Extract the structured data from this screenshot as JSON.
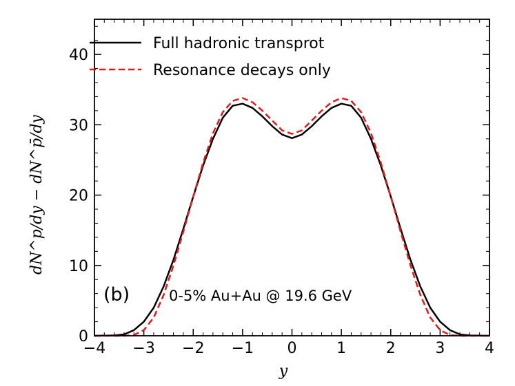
{
  "chart_data": {
    "type": "line",
    "xlabel": "y",
    "ylabel": "dN^p/dy − dN^p̄/dy",
    "xlim": [
      -4,
      4
    ],
    "ylim": [
      0,
      45
    ],
    "xticks": [
      -4,
      -3,
      -2,
      -1,
      0,
      1,
      2,
      3,
      4
    ],
    "yticks": [
      0,
      10,
      20,
      30,
      40
    ],
    "grid": false,
    "legend": "upper-left",
    "annotations": {
      "panel": "(b)",
      "system": "0-5% Au+Au @ 19.6 GeV"
    },
    "series": [
      {
        "name": "Full hadronic transprot",
        "color": "#000000",
        "dash": "solid",
        "x": [
          -4.0,
          -3.6,
          -3.4,
          -3.2,
          -3.0,
          -2.8,
          -2.6,
          -2.4,
          -2.2,
          -2.0,
          -1.8,
          -1.6,
          -1.4,
          -1.2,
          -1.0,
          -0.8,
          -0.6,
          -0.4,
          -0.2,
          0.0,
          0.2,
          0.4,
          0.6,
          0.8,
          1.0,
          1.2,
          1.4,
          1.6,
          1.8,
          2.0,
          2.2,
          2.4,
          2.6,
          2.8,
          3.0,
          3.2,
          3.4,
          3.6,
          4.0
        ],
        "y": [
          0.0,
          0.05,
          0.2,
          0.8,
          2.0,
          4.0,
          7.0,
          10.8,
          15.2,
          19.8,
          24.2,
          28.0,
          31.0,
          32.7,
          33.0,
          32.4,
          31.2,
          29.8,
          28.6,
          28.1,
          28.6,
          29.8,
          31.2,
          32.4,
          33.0,
          32.7,
          31.0,
          28.0,
          24.2,
          19.8,
          15.2,
          10.8,
          7.0,
          4.0,
          2.0,
          0.8,
          0.2,
          0.05,
          0.0
        ]
      },
      {
        "name": "Resonance decays only",
        "color": "#e31a1c",
        "dash": "dashed",
        "x": [
          -4.0,
          -3.6,
          -3.4,
          -3.2,
          -3.0,
          -2.8,
          -2.6,
          -2.4,
          -2.2,
          -2.0,
          -1.8,
          -1.6,
          -1.4,
          -1.2,
          -1.0,
          -0.8,
          -0.6,
          -0.4,
          -0.2,
          0.0,
          0.2,
          0.4,
          0.6,
          0.8,
          1.0,
          1.2,
          1.4,
          1.6,
          1.8,
          2.0,
          2.2,
          2.4,
          2.6,
          2.8,
          3.0,
          3.2,
          3.4,
          3.6,
          4.0
        ],
        "y": [
          0.0,
          0.0,
          0.0,
          0.1,
          0.8,
          2.6,
          5.8,
          10.0,
          14.8,
          19.8,
          24.6,
          28.8,
          31.8,
          33.4,
          33.8,
          33.2,
          32.0,
          30.6,
          29.2,
          28.7,
          29.2,
          30.6,
          32.0,
          33.2,
          33.8,
          33.4,
          31.8,
          28.8,
          24.6,
          19.8,
          14.8,
          10.0,
          5.8,
          2.6,
          0.8,
          0.1,
          0.0,
          0.0,
          0.0
        ]
      }
    ]
  }
}
